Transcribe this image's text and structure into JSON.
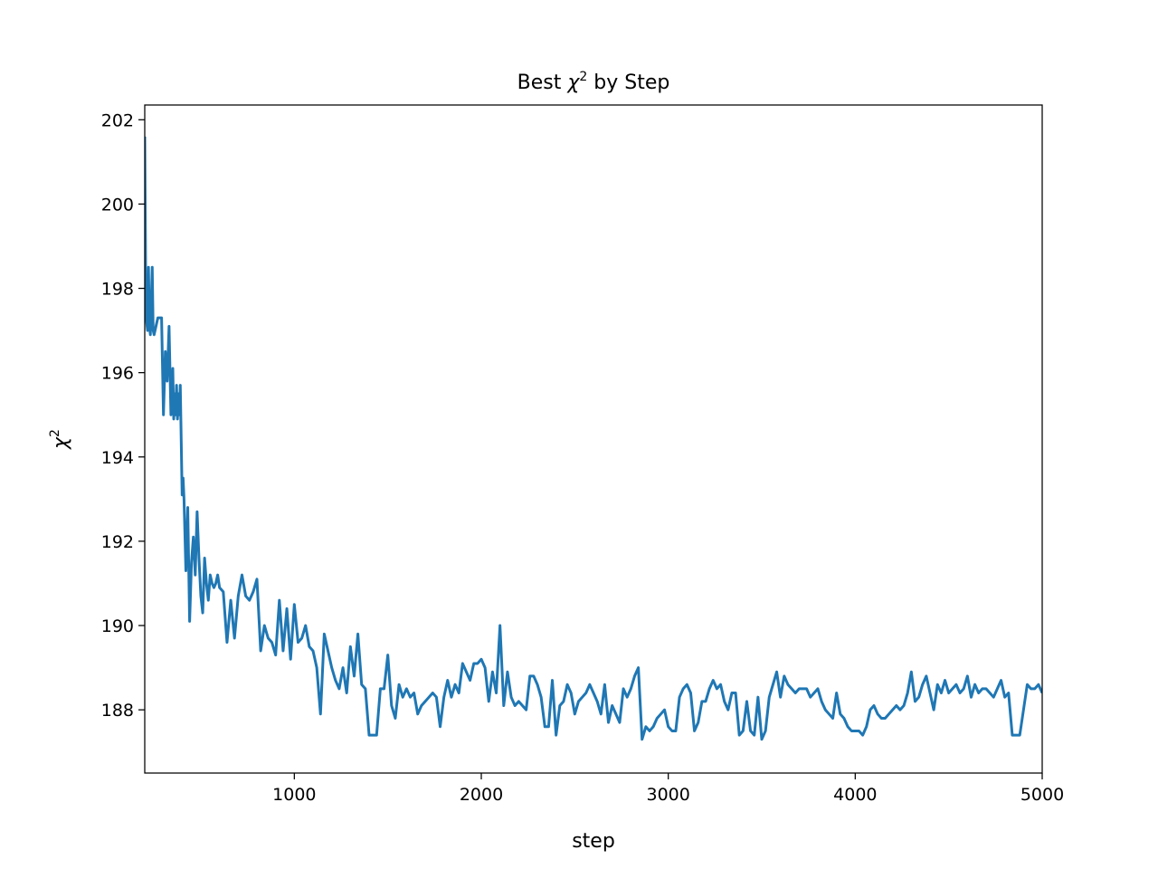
{
  "chart_data": {
    "type": "line",
    "title_prefix": "Best ",
    "title_symbol": "χ",
    "title_sup": "2",
    "title_suffix": " by Step",
    "xlabel": "step",
    "ylabel_symbol": "χ",
    "ylabel_sup": "2",
    "xlim": [
      200,
      5000
    ],
    "ylim": [
      186.5,
      202.35
    ],
    "xticks": [
      1000,
      2000,
      3000,
      4000,
      5000
    ],
    "yticks": [
      188,
      190,
      192,
      194,
      196,
      198,
      200,
      202
    ],
    "grid": false,
    "colors": {
      "series": "#1f77b4",
      "axes": "#000000",
      "background": "#ffffff"
    },
    "series": [
      {
        "values_step_x": [
          200,
          205,
          210,
          215,
          220,
          225,
          230,
          240,
          245,
          250,
          270,
          290,
          300,
          310,
          320,
          330,
          340,
          350,
          355,
          360,
          365,
          370,
          375,
          380,
          385,
          390,
          395,
          400,
          405,
          410,
          420,
          430,
          440,
          450,
          460,
          470,
          480,
          490,
          500,
          510,
          520,
          530,
          540,
          550,
          560,
          570,
          580,
          590,
          600,
          620,
          640,
          660,
          680,
          700,
          720,
          740,
          760,
          780,
          800,
          820,
          840,
          860,
          880,
          900,
          920,
          940,
          960,
          980,
          1000,
          1020,
          1040,
          1060,
          1080,
          1100,
          1120,
          1140,
          1160,
          1180,
          1200,
          1220,
          1240,
          1260,
          1280,
          1300,
          1320,
          1340,
          1360,
          1380,
          1400,
          1420,
          1440,
          1460,
          1480,
          1500,
          1520,
          1540,
          1560,
          1580,
          1600,
          1620,
          1640,
          1660,
          1680,
          1700,
          1720,
          1740,
          1760,
          1780,
          1800,
          1820,
          1840,
          1860,
          1880,
          1900,
          1920,
          1940,
          1960,
          1980,
          2000,
          2020,
          2040,
          2060,
          2080,
          2100,
          2120,
          2140,
          2160,
          2180,
          2200,
          2220,
          2240,
          2260,
          2280,
          2300,
          2320,
          2340,
          2360,
          2380,
          2400,
          2420,
          2440,
          2460,
          2480,
          2500,
          2520,
          2540,
          2560,
          2580,
          2600,
          2620,
          2640,
          2660,
          2680,
          2700,
          2720,
          2740,
          2760,
          2780,
          2800,
          2820,
          2840,
          2860,
          2880,
          2900,
          2920,
          2940,
          2960,
          2980,
          3000,
          3020,
          3040,
          3060,
          3080,
          3100,
          3120,
          3140,
          3160,
          3180,
          3200,
          3220,
          3240,
          3260,
          3280,
          3300,
          3320,
          3340,
          3360,
          3380,
          3400,
          3420,
          3440,
          3460,
          3480,
          3500,
          3520,
          3540,
          3560,
          3580,
          3600,
          3620,
          3640,
          3660,
          3680,
          3700,
          3720,
          3740,
          3760,
          3780,
          3800,
          3820,
          3840,
          3860,
          3880,
          3900,
          3920,
          3940,
          3960,
          3980,
          4000,
          4020,
          4040,
          4060,
          4080,
          4100,
          4120,
          4140,
          4160,
          4180,
          4200,
          4220,
          4240,
          4260,
          4280,
          4300,
          4320,
          4340,
          4360,
          4380,
          4400,
          4420,
          4440,
          4460,
          4480,
          4500,
          4520,
          4540,
          4560,
          4580,
          4600,
          4620,
          4640,
          4660,
          4680,
          4700,
          4720,
          4740,
          4760,
          4780,
          4800,
          4820,
          4840,
          4860,
          4880,
          4900,
          4920,
          4940,
          4960,
          4980,
          5000
        ],
        "values": [
          201.6,
          198.3,
          197.2,
          197.0,
          198.5,
          197.1,
          196.9,
          198.5,
          197.0,
          196.9,
          197.3,
          197.3,
          195.0,
          196.5,
          195.8,
          197.1,
          195.0,
          196.1,
          194.9,
          195.5,
          195.0,
          195.7,
          194.9,
          195.5,
          195.0,
          195.7,
          194.4,
          193.1,
          193.5,
          193.0,
          191.3,
          192.8,
          190.1,
          191.5,
          192.1,
          191.2,
          192.7,
          191.6,
          190.7,
          190.3,
          191.6,
          191.0,
          190.6,
          191.2,
          191.0,
          190.9,
          191.0,
          191.2,
          190.9,
          190.8,
          189.6,
          190.6,
          189.7,
          190.7,
          191.2,
          190.7,
          190.6,
          190.8,
          191.1,
          189.4,
          190.0,
          189.7,
          189.6,
          189.3,
          190.6,
          189.4,
          190.4,
          189.2,
          190.5,
          189.6,
          189.7,
          190.0,
          189.5,
          189.4,
          189.0,
          187.9,
          189.8,
          189.4,
          189.0,
          188.7,
          188.5,
          189.0,
          188.4,
          189.5,
          188.8,
          189.8,
          188.6,
          188.5,
          187.4,
          187.4,
          187.4,
          188.5,
          188.5,
          189.3,
          188.1,
          187.8,
          188.6,
          188.3,
          188.5,
          188.3,
          188.4,
          187.9,
          188.1,
          188.2,
          188.3,
          188.4,
          188.3,
          187.6,
          188.3,
          188.7,
          188.3,
          188.6,
          188.4,
          189.1,
          188.9,
          188.7,
          189.1,
          189.1,
          189.2,
          189.0,
          188.2,
          188.9,
          188.4,
          190.0,
          188.1,
          188.9,
          188.3,
          188.1,
          188.2,
          188.1,
          188.0,
          188.8,
          188.8,
          188.6,
          188.3,
          187.6,
          187.6,
          188.7,
          187.4,
          188.1,
          188.2,
          188.6,
          188.4,
          187.9,
          188.2,
          188.3,
          188.4,
          188.6,
          188.4,
          188.2,
          187.9,
          188.6,
          187.7,
          188.1,
          187.9,
          187.7,
          188.5,
          188.3,
          188.5,
          188.8,
          189.0,
          187.3,
          187.6,
          187.5,
          187.6,
          187.8,
          187.9,
          188.0,
          187.6,
          187.5,
          187.5,
          188.3,
          188.5,
          188.6,
          188.4,
          187.5,
          187.7,
          188.2,
          188.2,
          188.5,
          188.7,
          188.5,
          188.6,
          188.2,
          188.0,
          188.4,
          188.4,
          187.4,
          187.5,
          188.2,
          187.5,
          187.4,
          188.3,
          187.3,
          187.5,
          188.3,
          188.6,
          188.9,
          188.3,
          188.8,
          188.6,
          188.5,
          188.4,
          188.5,
          188.5,
          188.5,
          188.3,
          188.4,
          188.5,
          188.2,
          188.0,
          187.9,
          187.8,
          188.4,
          187.9,
          187.8,
          187.6,
          187.5,
          187.5,
          187.5,
          187.4,
          187.6,
          188.0,
          188.1,
          187.9,
          187.8,
          187.8,
          187.9,
          188.0,
          188.1,
          188.0,
          188.1,
          188.4,
          188.9,
          188.2,
          188.3,
          188.6,
          188.8,
          188.4,
          188.0,
          188.6,
          188.4,
          188.7,
          188.4,
          188.5,
          188.6,
          188.4,
          188.5,
          188.8,
          188.3,
          188.6,
          188.4,
          188.5,
          188.5,
          188.4,
          188.3,
          188.5,
          188.7,
          188.3,
          188.4,
          187.4,
          187.4,
          187.4,
          188.0,
          188.6,
          188.5,
          188.5,
          188.6,
          188.4
        ]
      }
    ]
  }
}
